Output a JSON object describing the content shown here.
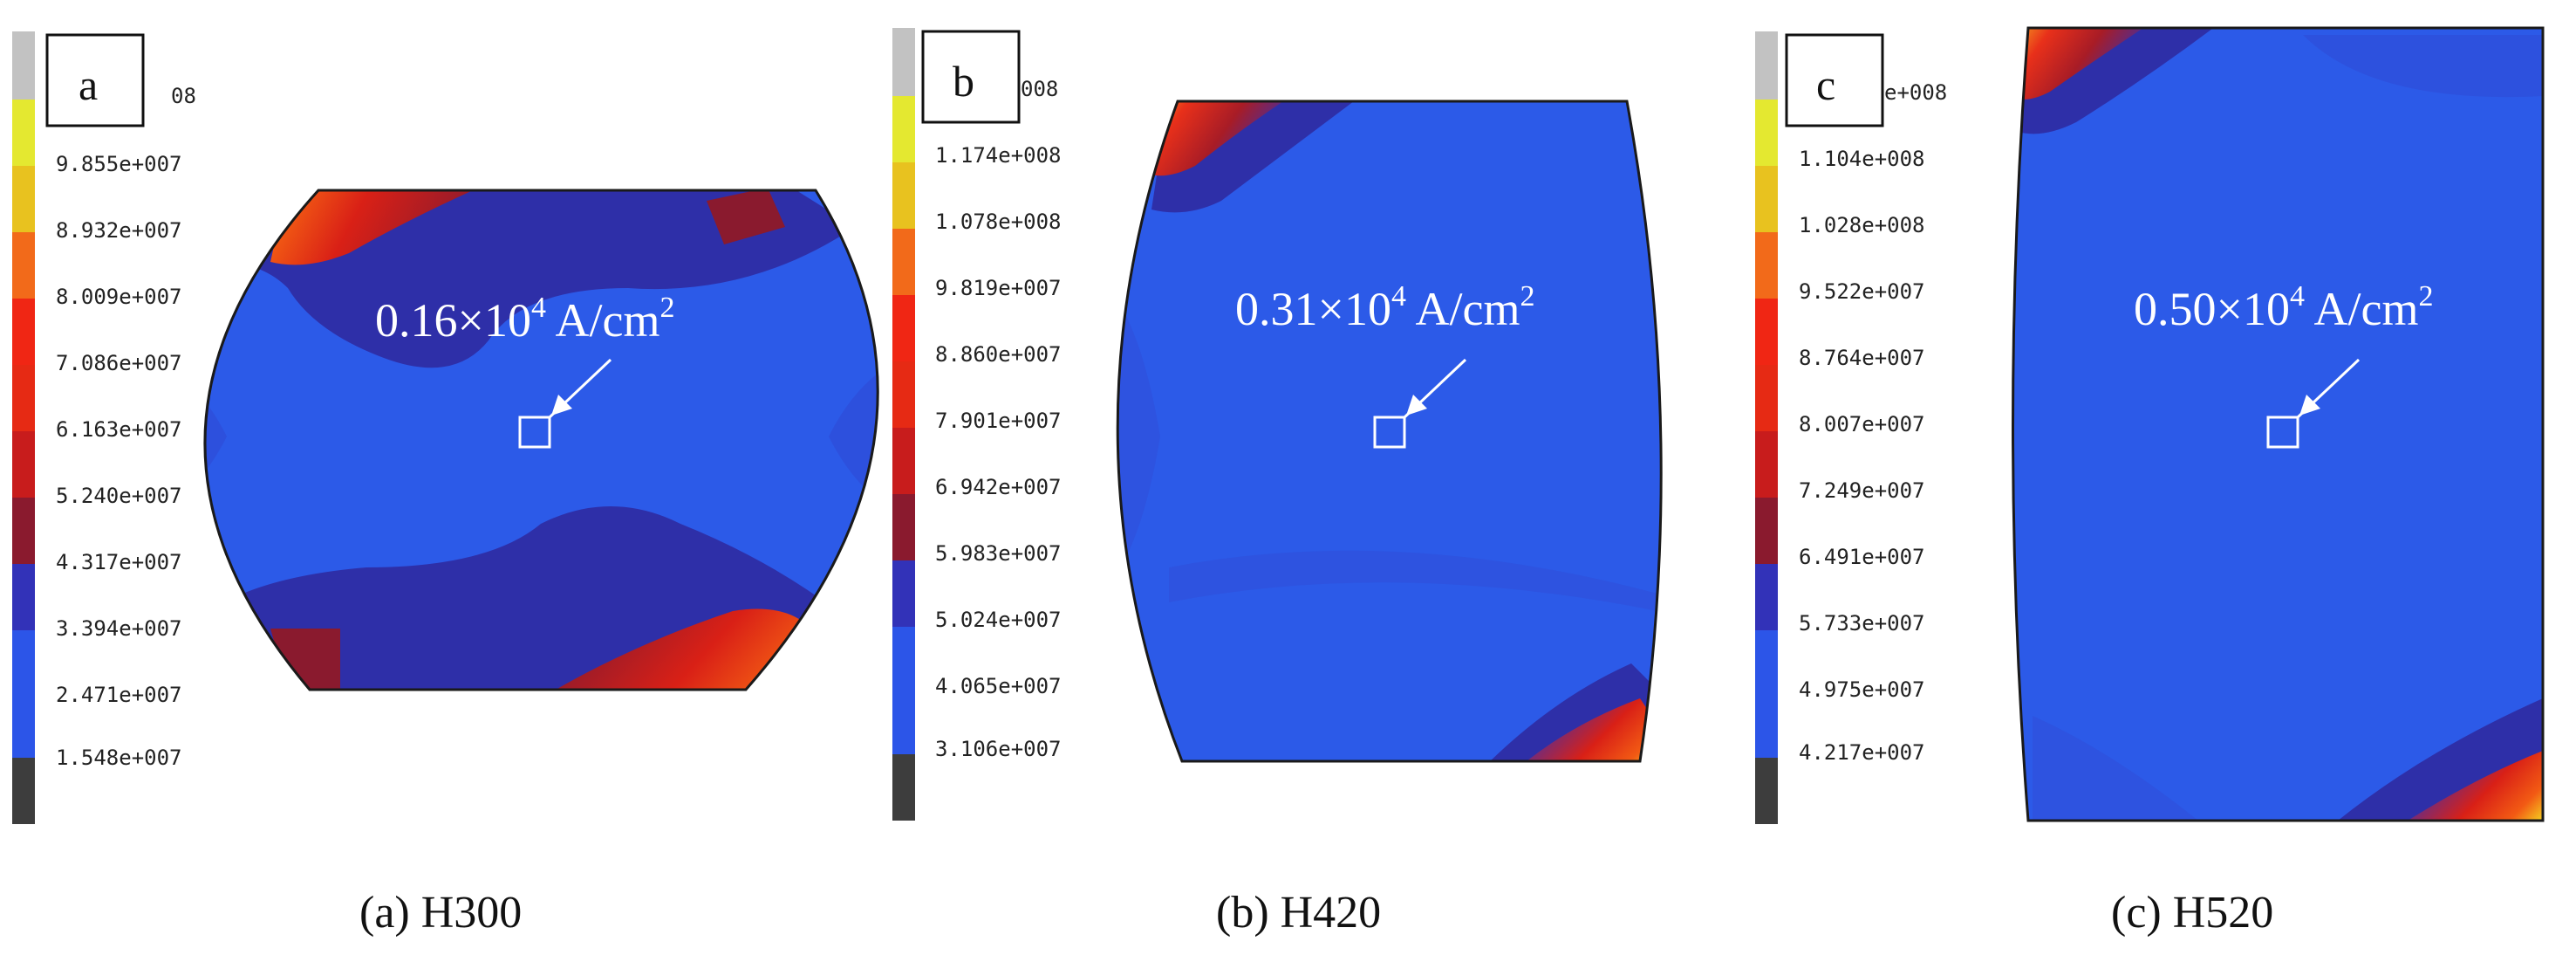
{
  "colors": {
    "scale": [
      "#3d3d3d",
      "#2c55e8",
      "#3a3fd2",
      "#3232b8",
      "#8a1a2e",
      "#c81c1c",
      "#e62a14",
      "#f02614",
      "#f26a1a",
      "#eb9a1a",
      "#e8c21f",
      "#e4e830",
      "#c2c2c2"
    ],
    "field_base": "#2c5ae8",
    "field_mid": "#3240c8",
    "field_dark": "#2e2fa8",
    "hot_red": "#d92016",
    "hot_orange": "#f25a14",
    "hot_yellow": "#f5d020"
  },
  "panels": [
    {
      "letter": "a",
      "legend_values": [
        "08",
        "9.855e+007",
        "8.932e+007",
        "8.009e+007",
        "7.086e+007",
        "6.163e+007",
        "5.240e+007",
        "4.317e+007",
        "3.394e+007",
        "2.471e+007",
        "1.548e+007"
      ],
      "annotation": {
        "value": "0.16×10",
        "exponent": "4",
        "unit": " A/cm",
        "unit_exponent": "2"
      },
      "caption": "(a) H300"
    },
    {
      "letter": "b",
      "legend_values": [
        "008",
        "1.174e+008",
        "1.078e+008",
        "9.819e+007",
        "8.860e+007",
        "7.901e+007",
        "6.942e+007",
        "5.983e+007",
        "5.024e+007",
        "4.065e+007",
        "3.106e+007"
      ],
      "annotation": {
        "value": "0.31×10",
        "exponent": "4",
        "unit": " A/cm",
        "unit_exponent": "2"
      },
      "caption": "(b) H420"
    },
    {
      "letter": "c",
      "legend_values": [
        "e+008",
        "1.104e+008",
        "1.028e+008",
        "9.522e+007",
        "8.764e+007",
        "8.007e+007",
        "7.249e+007",
        "6.491e+007",
        "5.733e+007",
        "4.975e+007",
        "4.217e+007"
      ],
      "annotation": {
        "value": "0.50×10",
        "exponent": "4",
        "unit": " A/cm",
        "unit_exponent": "2"
      },
      "caption": "(c) H520"
    }
  ]
}
